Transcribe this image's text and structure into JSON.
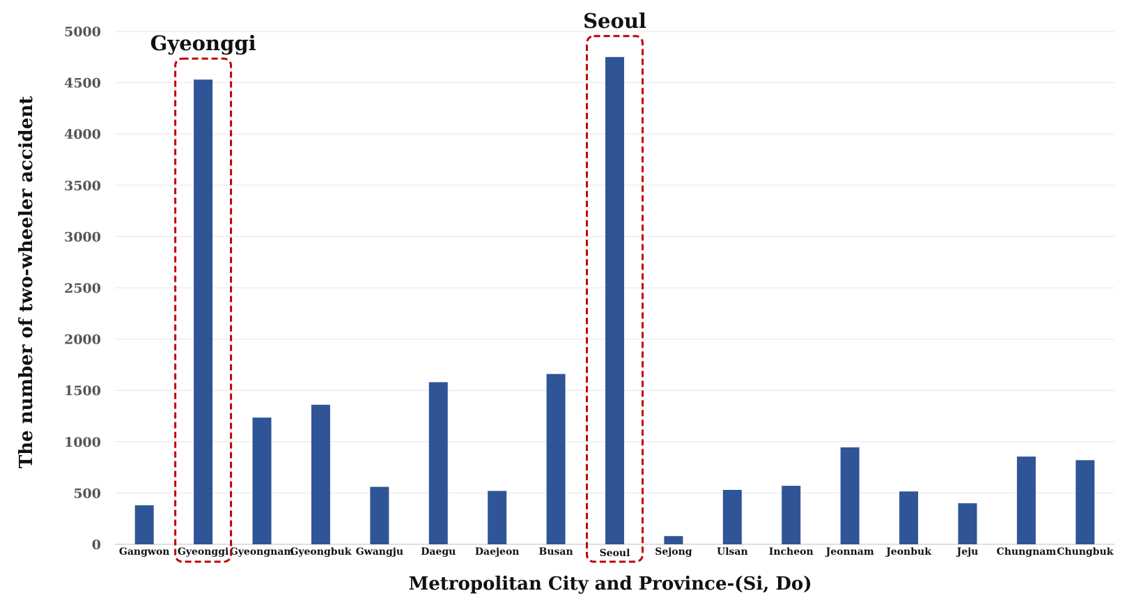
{
  "chart_data": {
    "type": "bar",
    "title": "",
    "xlabel": "Metropolitan City and Province-(Si, Do)",
    "ylabel": "The number of two-wheeler accident",
    "categories": [
      "Gangwon",
      "Gyeonggi",
      "Gyeongnam",
      "Gyeongbuk",
      "Gwangju",
      "Daegu",
      "Daejeon",
      "Busan",
      "Seoul",
      "Sejong",
      "Ulsan",
      "Incheon",
      "Jeonnam",
      "Jeonbuk",
      "Jeju",
      "Chungnam",
      "Chungbuk"
    ],
    "values": [
      380,
      4530,
      1235,
      1360,
      560,
      1580,
      520,
      1660,
      4750,
      80,
      530,
      570,
      945,
      515,
      400,
      855,
      820
    ],
    "ylim": [
      0,
      5000
    ],
    "yticks": [
      0,
      500,
      1000,
      1500,
      2000,
      2500,
      3000,
      3500,
      4000,
      4500,
      5000
    ],
    "grid": true,
    "bar_color": "#2F5597",
    "highlight_color": "#C00000",
    "annotations": [
      {
        "category": "Gyeonggi",
        "text": "Gyeonggi"
      },
      {
        "category": "Seoul",
        "text": "Seoul"
      }
    ]
  }
}
